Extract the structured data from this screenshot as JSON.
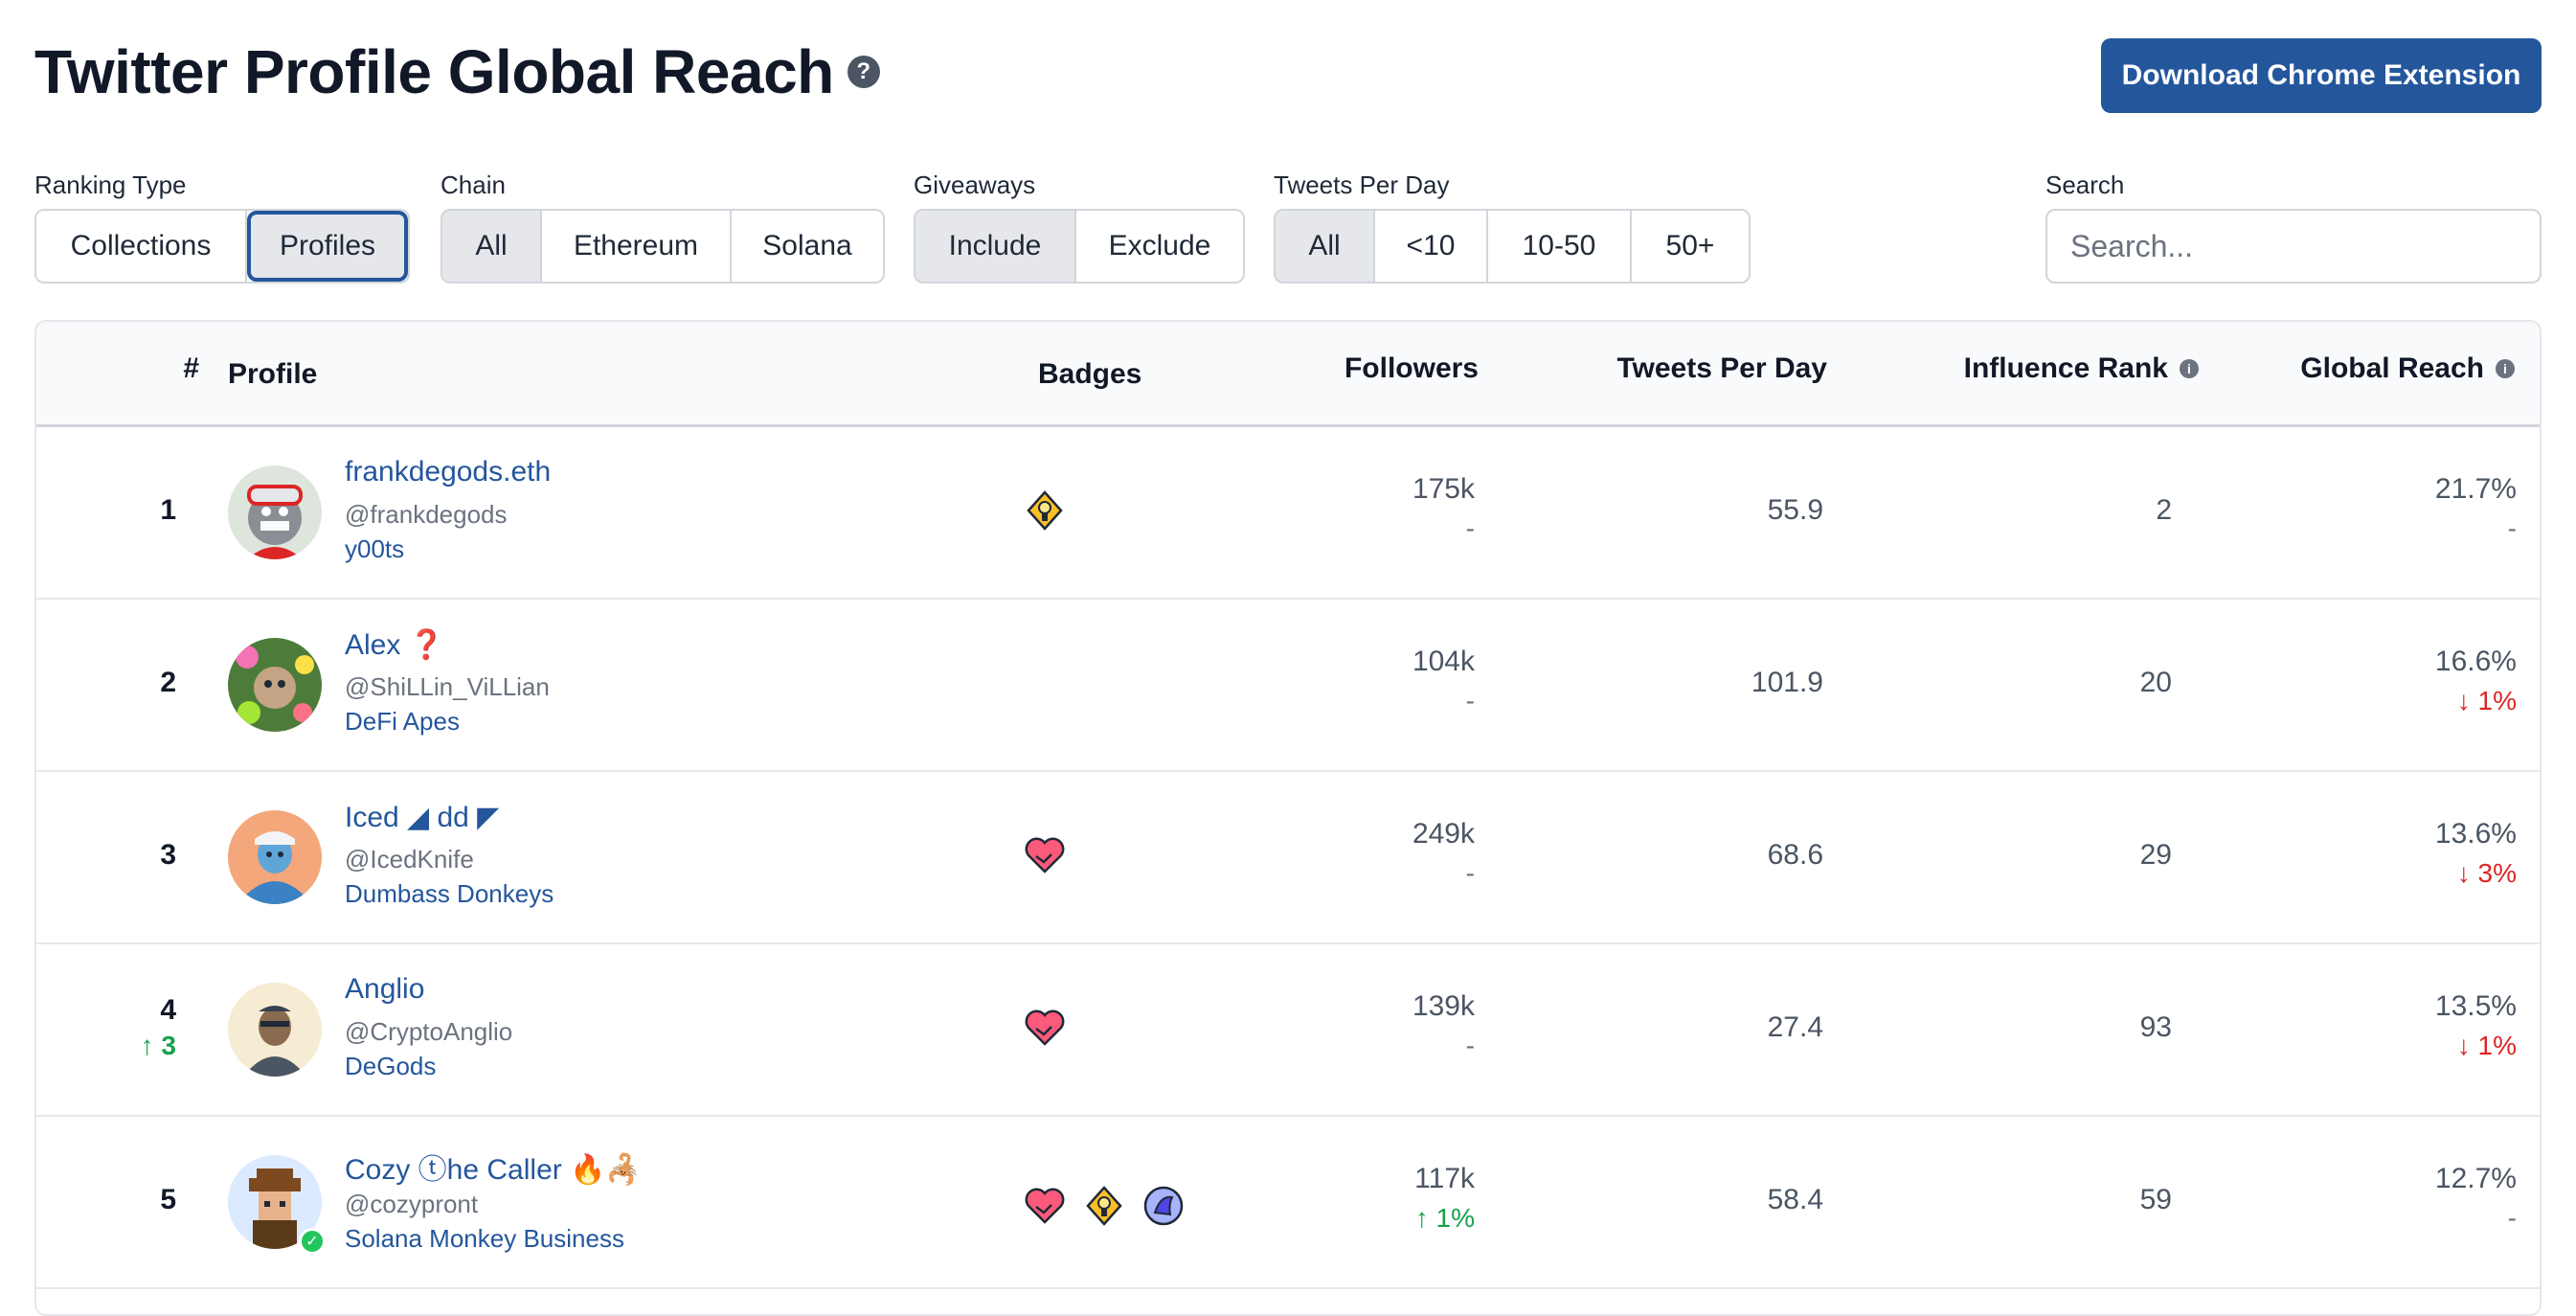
{
  "header": {
    "title": "Twitter Profile Global Reach",
    "download_label": "Download Chrome Extension"
  },
  "filters": {
    "ranking_type": {
      "label": "Ranking Type",
      "options": [
        "Collections",
        "Profiles"
      ],
      "selected": "Profiles"
    },
    "chain": {
      "label": "Chain",
      "options": [
        "All",
        "Ethereum",
        "Solana"
      ],
      "selected": "All"
    },
    "giveaways": {
      "label": "Giveaways",
      "options": [
        "Include",
        "Exclude"
      ],
      "selected": "Include"
    },
    "tweets_per_day": {
      "label": "Tweets Per Day",
      "options": [
        "All",
        "<10",
        "10-50",
        "50+"
      ],
      "selected": "All"
    },
    "search": {
      "label": "Search",
      "placeholder": "Search..."
    }
  },
  "table": {
    "columns": [
      "#",
      "Profile",
      "Badges",
      "Followers",
      "Tweets Per Day",
      "Influence Rank",
      "Global Reach"
    ],
    "rows": [
      {
        "rank": "1",
        "rank_change": "",
        "name": "frankdegods.eth",
        "handle": "@frankdegods",
        "collection": "y00ts",
        "badges": [
          "trophy-badge"
        ],
        "followers": "175k",
        "followers_change": "-",
        "tweets_per_day": "55.9",
        "influence_rank": "2",
        "global_reach": "21.7%",
        "reach_change": "-"
      },
      {
        "rank": "2",
        "rank_change": "",
        "name": "Alex ❓",
        "handle": "@ShiLLin_ViLLian",
        "collection": "DeFi Apes",
        "badges": [],
        "followers": "104k",
        "followers_change": "-",
        "tweets_per_day": "101.9",
        "influence_rank": "20",
        "global_reach": "16.6%",
        "reach_change": "↓ 1%"
      },
      {
        "rank": "3",
        "rank_change": "",
        "name": "Iced ◢ dd ◤",
        "handle": "@IcedKnife",
        "collection": "Dumbass Donkeys",
        "badges": [
          "handshake-heart-badge"
        ],
        "followers": "249k",
        "followers_change": "-",
        "tweets_per_day": "68.6",
        "influence_rank": "29",
        "global_reach": "13.6%",
        "reach_change": "↓ 3%"
      },
      {
        "rank": "4",
        "rank_change": "↑ 3",
        "name": "Anglio",
        "handle": "@CryptoAnglio",
        "collection": "DeGods",
        "badges": [
          "handshake-heart-badge"
        ],
        "followers": "139k",
        "followers_change": "-",
        "tweets_per_day": "27.4",
        "influence_rank": "93",
        "global_reach": "13.5%",
        "reach_change": "↓ 1%"
      },
      {
        "rank": "5",
        "rank_change": "",
        "name": "Cozy ⓣhe Caller 🔥🦂",
        "handle": "@cozypront",
        "collection": "Solana Monkey Business",
        "badges": [
          "handshake-heart-badge",
          "trophy-badge",
          "bird-badge"
        ],
        "followers": "117k",
        "followers_change": "↑ 1%",
        "tweets_per_day": "58.4",
        "influence_rank": "59",
        "global_reach": "12.7%",
        "reach_change": "-"
      }
    ]
  },
  "colors": {
    "primary": "#24569c",
    "down": "#dc2626",
    "up": "#16a34a"
  }
}
